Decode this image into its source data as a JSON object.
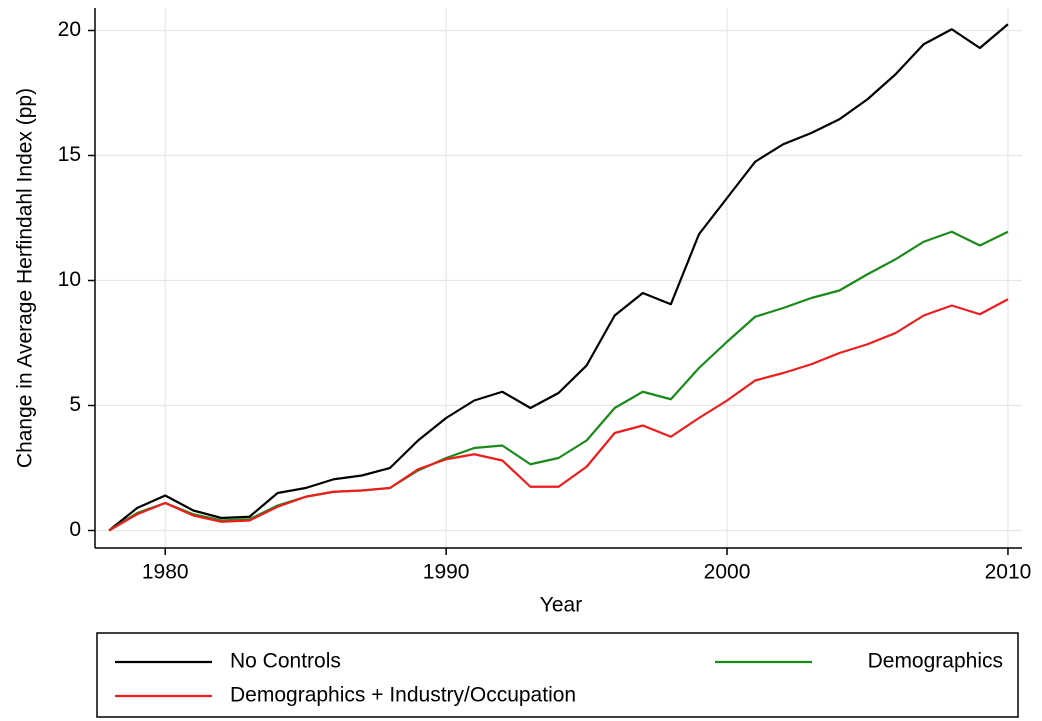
{
  "chart_data": {
    "type": "line",
    "x_label": "Year",
    "y_label": "Change in Average Herfindahl Index (pp)",
    "x": [
      1978,
      1979,
      1980,
      1981,
      1982,
      1983,
      1984,
      1985,
      1986,
      1987,
      1988,
      1989,
      1990,
      1991,
      1992,
      1993,
      1994,
      1995,
      1996,
      1997,
      1998,
      1999,
      2000,
      2001,
      2002,
      2003,
      2004,
      2005,
      2006,
      2007,
      2008,
      2009,
      2010
    ],
    "series": [
      {
        "name": "No Controls",
        "color": "#000000",
        "values": [
          0,
          0.9,
          1.4,
          0.8,
          0.5,
          0.55,
          1.5,
          1.7,
          2.05,
          2.2,
          2.5,
          3.6,
          4.5,
          5.2,
          5.55,
          4.9,
          5.5,
          6.6,
          8.6,
          9.5,
          9.05,
          11.85,
          13.3,
          14.75,
          15.45,
          15.9,
          16.45,
          17.25,
          18.25,
          19.45,
          20.05,
          19.3,
          20.25
        ]
      },
      {
        "name": "Demographics",
        "color": "#1a8a1a",
        "values": [
          0,
          0.7,
          1.1,
          0.65,
          0.4,
          0.45,
          1.0,
          1.35,
          1.55,
          1.6,
          1.7,
          2.4,
          2.9,
          3.3,
          3.4,
          2.65,
          2.9,
          3.6,
          4.9,
          5.55,
          5.25,
          6.5,
          7.55,
          8.55,
          8.9,
          9.3,
          9.6,
          10.25,
          10.85,
          11.55,
          11.95,
          11.4,
          11.95
        ]
      },
      {
        "name": "Demographics + Industry/Occupation",
        "color": "#ee1c1c",
        "values": [
          0,
          0.65,
          1.1,
          0.6,
          0.35,
          0.4,
          0.95,
          1.35,
          1.55,
          1.6,
          1.7,
          2.45,
          2.85,
          3.05,
          2.8,
          1.75,
          1.75,
          2.55,
          3.9,
          4.2,
          3.75,
          4.5,
          5.2,
          6.0,
          6.3,
          6.65,
          7.1,
          7.45,
          7.9,
          8.6,
          9.0,
          8.65,
          9.25
        ]
      }
    ],
    "xlim": [
      1977.5,
      2010.5
    ],
    "xticks": [
      1980,
      1990,
      2000,
      2010
    ],
    "ylim": [
      -0.7,
      20.9
    ],
    "yticks": [
      0,
      5,
      10,
      15,
      20
    ],
    "grid": true,
    "legend": "bottom"
  }
}
